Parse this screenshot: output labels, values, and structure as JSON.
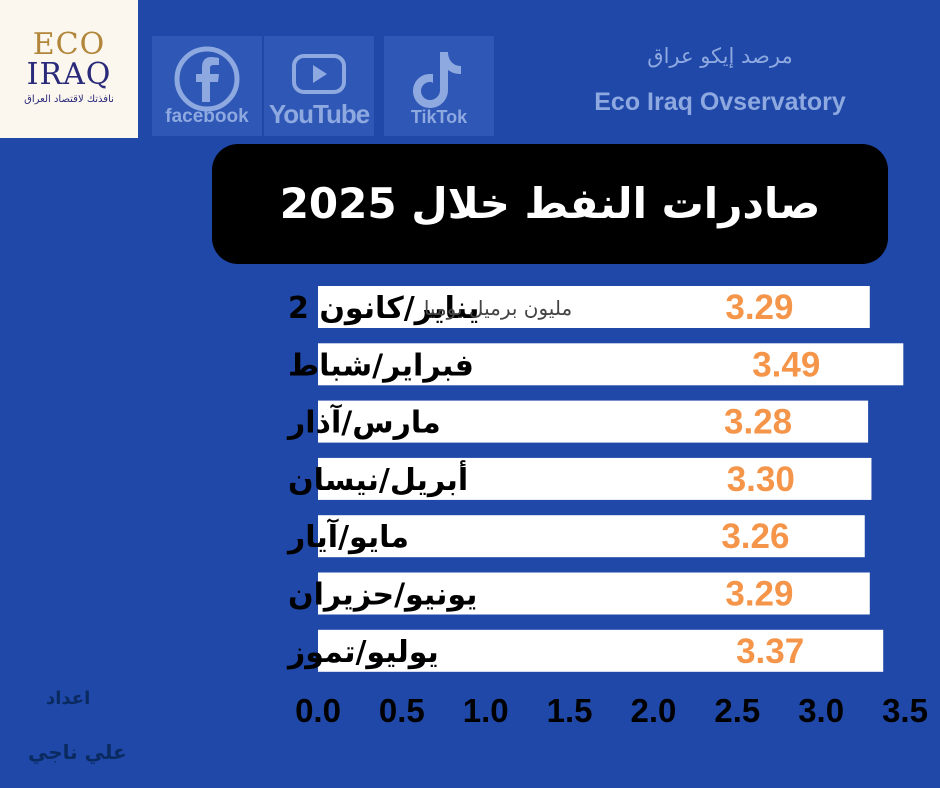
{
  "logo": {
    "line1": "ECO",
    "line2": "IRAQ",
    "tagline": "نافذتك لاقتصاد العراق"
  },
  "social": {
    "facebook": "facebook",
    "youtube": "YouTube",
    "tiktok": "TikTok"
  },
  "observatory": {
    "name_ar": "مرصد إيكو عراق",
    "name_en": "Eco Iraq Ovservatory"
  },
  "title": "صادرات النفط خلال 2025",
  "credit": {
    "prepared_by": "اعداد",
    "author": "علي ناجي"
  },
  "colors": {
    "background": "#1f48a8",
    "bar": "#ffffff",
    "value_label": "#f5954a",
    "unit_label": "#444444",
    "category_label": "#000000"
  },
  "chart_data": {
    "type": "bar",
    "orientation": "horizontal",
    "categories": [
      "يناير/كانون 2",
      "فبراير/شباط",
      "مارس/آذار",
      "أبريل/نيسان",
      "مايو/آيار",
      "يونيو/حزيران",
      "يوليو/تموز"
    ],
    "values": [
      3.29,
      3.49,
      3.28,
      3.3,
      3.26,
      3.29,
      3.37
    ],
    "value_labels": [
      "3.29",
      "3.49",
      "3.28",
      "3.30",
      "3.26",
      "3.29",
      "3.37"
    ],
    "unit_annotation": "مليون برميل يوميا",
    "xlim": [
      0,
      3.5
    ],
    "ticks": [
      "0.0",
      "0.5",
      "1.0",
      "1.5",
      "2.0",
      "2.5",
      "3.0",
      "3.5"
    ],
    "grid": false,
    "legend": "none"
  }
}
